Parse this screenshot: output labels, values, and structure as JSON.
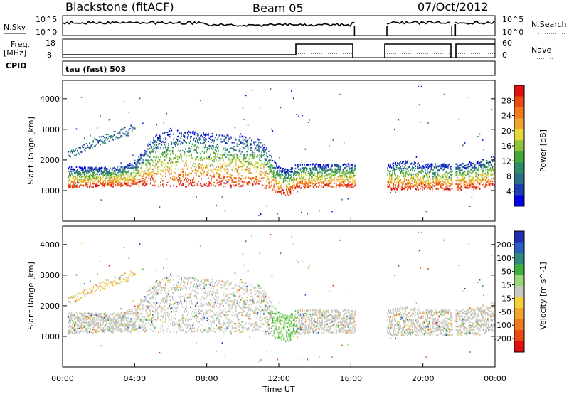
{
  "header": {
    "station": "Blackstone (fitACF)",
    "beam": "Beam 05",
    "date": "07/Oct/2012"
  },
  "aux": {
    "nsky_label": "N.Sky",
    "nsearch_label": "N.Search",
    "freq_label": "Freq.",
    "freq_unit": "[MHz]",
    "nave_label": "Nave",
    "cpid_label": "CPID",
    "cpid_value": "tau (fast) 503",
    "noise_ticks_left": [
      "10^5",
      "10^0"
    ],
    "noise_ticks_right": [
      "10^5",
      "10^0"
    ],
    "freq_ticks": [
      "18",
      "8"
    ],
    "nave_ticks": [
      "60",
      "0"
    ]
  },
  "chart_data": [
    {
      "type": "heatmap",
      "panel": "power",
      "ylabel": "Slant Range [km]",
      "yticks": [
        "1000",
        "2000",
        "3000",
        "4000"
      ],
      "ylim": [
        0,
        4600
      ],
      "xlim": [
        0,
        24
      ],
      "colorbar": {
        "label": "Power [dB]",
        "ticks": [
          "4",
          "8",
          "12",
          "16",
          "20",
          "24",
          "28"
        ],
        "range": [
          0,
          32
        ],
        "colors": [
          "#0000e6",
          "#1f3fb0",
          "#2e6e88",
          "#2f8c6a",
          "#46a83a",
          "#8cc43a",
          "#e3d73a",
          "#f0a52c",
          "#f27a1e",
          "#ea4a14",
          "#e01010"
        ]
      },
      "bands": [
        {
          "name": "lower band",
          "x": [
            0.3,
            1,
            2,
            3,
            4,
            5,
            6,
            7,
            8,
            9,
            10,
            11,
            12,
            12.5,
            13,
            14,
            15,
            16,
            18,
            19,
            20,
            21,
            22,
            23,
            24
          ],
          "low": [
            1100,
            1130,
            1150,
            1150,
            1180,
            1150,
            1150,
            1150,
            1160,
            1150,
            1150,
            1150,
            900,
            850,
            1100,
            1120,
            1120,
            1120,
            1050,
            1050,
            1050,
            1050,
            1050,
            1050,
            1200
          ],
          "high": [
            1800,
            1800,
            1780,
            1800,
            1950,
            2800,
            3000,
            3000,
            2900,
            2850,
            2800,
            2700,
            1800,
            1700,
            1900,
            1900,
            1900,
            1900,
            1900,
            2000,
            1900,
            1900,
            1900,
            2000,
            2200
          ]
        },
        {
          "name": "upper band",
          "x": [
            0.3,
            1,
            2,
            3,
            4
          ],
          "low": [
            2100,
            2200,
            2500,
            2700,
            2900
          ],
          "high": [
            2300,
            2500,
            2800,
            3000,
            3200
          ]
        }
      ]
    },
    {
      "type": "heatmap",
      "panel": "velocity",
      "ylabel": "Slant Range [km]",
      "yticks": [
        "1000",
        "2000",
        "3000",
        "4000"
      ],
      "ylim": [
        0,
        4600
      ],
      "xlim": [
        0,
        24
      ],
      "colorbar": {
        "label": "Velocity [m s^-1]",
        "ticks": [
          "200",
          "100",
          "50",
          "15",
          "-15",
          "-50",
          "-100",
          "-200"
        ],
        "colors": [
          "#1f2fb0",
          "#2a5fc0",
          "#2e8a7a",
          "#3db23a",
          "#9ad67a",
          "#c8c8c0",
          "#f5d23a",
          "#f0a52c",
          "#ef7a1e",
          "#e84a14",
          "#e01010"
        ]
      }
    }
  ],
  "xaxis": {
    "ticks": [
      "00:00",
      "04:00",
      "08:00",
      "12:00",
      "16:00",
      "20:00",
      "00:00"
    ],
    "label": "Time UT"
  },
  "gaps": [
    [
      16.2,
      18.0
    ],
    [
      21.6,
      21.8
    ]
  ]
}
